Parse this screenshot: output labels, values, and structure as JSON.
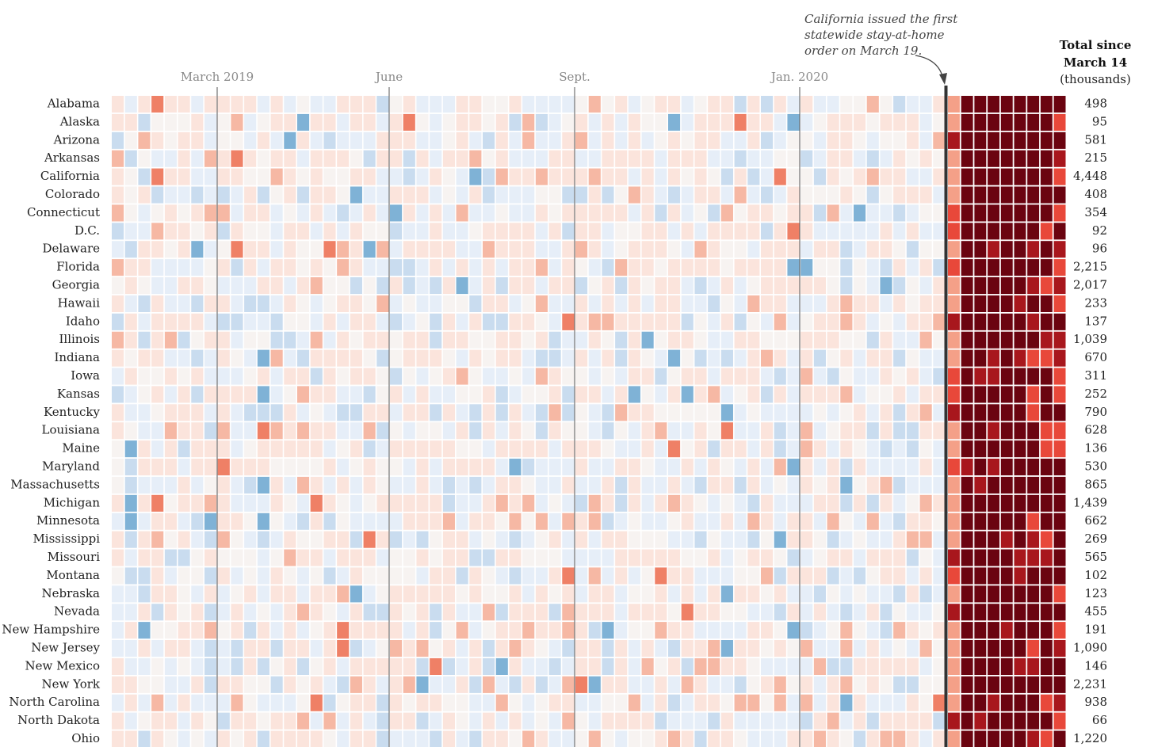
{
  "chart_data": {
    "type": "heatmap",
    "x_labels": [
      "March 2019",
      "June",
      "Sept.",
      "Jan. 2020"
    ],
    "total_header": [
      "Total since",
      "March 14",
      "(thousands)"
    ],
    "annotation": [
      "California issued the first",
      "statewide stay-at-home",
      "order on March 19."
    ],
    "weeks_before": 63,
    "weeks_after": 9,
    "colors": {
      "strong_negative": "#7fb2d6",
      "negative": "#c9dcef",
      "light_negative": "#e6eef8",
      "neutral": "#f7f3f1",
      "light_positive": "#fbe4dc",
      "positive": "#f6b8a4",
      "strong_positive": "#ef8066",
      "surge_low": "#f4a088",
      "surge_mid": "#e8483a",
      "surge_high": "#a8171d",
      "surge_max": "#6b0410",
      "divider": "#333333"
    },
    "rows": [
      {
        "state": "Alabama",
        "total": "498"
      },
      {
        "state": "Alaska",
        "total": "95"
      },
      {
        "state": "Arizona",
        "total": "581"
      },
      {
        "state": "Arkansas",
        "total": "215"
      },
      {
        "state": "California",
        "total": "4,448"
      },
      {
        "state": "Colorado",
        "total": "408"
      },
      {
        "state": "Connecticut",
        "total": "354"
      },
      {
        "state": "D.C.",
        "total": "92"
      },
      {
        "state": "Delaware",
        "total": "96"
      },
      {
        "state": "Florida",
        "total": "2,215"
      },
      {
        "state": "Georgia",
        "total": "2,017"
      },
      {
        "state": "Hawaii",
        "total": "233"
      },
      {
        "state": "Idaho",
        "total": "137"
      },
      {
        "state": "Illinois",
        "total": "1,039"
      },
      {
        "state": "Indiana",
        "total": "670"
      },
      {
        "state": "Iowa",
        "total": "311"
      },
      {
        "state": "Kansas",
        "total": "252"
      },
      {
        "state": "Kentucky",
        "total": "790"
      },
      {
        "state": "Louisiana",
        "total": "628"
      },
      {
        "state": "Maine",
        "total": "136"
      },
      {
        "state": "Maryland",
        "total": "530"
      },
      {
        "state": "Massachusetts",
        "total": "865"
      },
      {
        "state": "Michigan",
        "total": "1,439"
      },
      {
        "state": "Minnesota",
        "total": "662"
      },
      {
        "state": "Mississippi",
        "total": "269"
      },
      {
        "state": "Missouri",
        "total": "565"
      },
      {
        "state": "Montana",
        "total": "102"
      },
      {
        "state": "Nebraska",
        "total": "123"
      },
      {
        "state": "Nevada",
        "total": "455"
      },
      {
        "state": "New Hampshire",
        "total": "191"
      },
      {
        "state": "New Jersey",
        "total": "1,090"
      },
      {
        "state": "New Mexico",
        "total": "146"
      },
      {
        "state": "New York",
        "total": "2,231"
      },
      {
        "state": "North Carolina",
        "total": "938"
      },
      {
        "state": "North Dakota",
        "total": "66"
      },
      {
        "state": "Ohio",
        "total": "1,220"
      }
    ]
  }
}
